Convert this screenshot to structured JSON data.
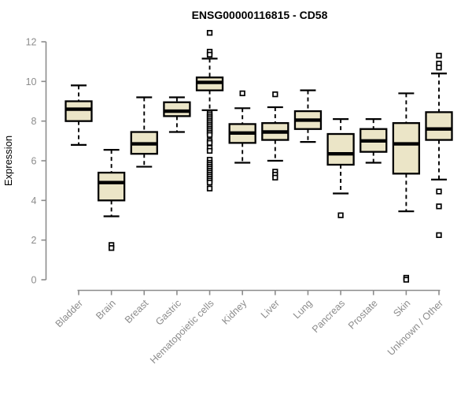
{
  "chart_data": {
    "type": "boxplot",
    "title": "ENSG00000116815 - CD58",
    "xlabel": "",
    "ylabel": "Expression",
    "ylim": [
      0,
      12
    ],
    "yticks": [
      0,
      2,
      4,
      6,
      8,
      10,
      12
    ],
    "grid": false,
    "legend": "none",
    "categories": [
      "Bladder",
      "Brain",
      "Breast",
      "Gastric",
      "Hematopoietic cells",
      "Kidney",
      "Liver",
      "Lung",
      "Pancreas",
      "Prostate",
      "Skin",
      "Unknown / Other"
    ],
    "series": [
      {
        "category": "Bladder",
        "whisker_low": 6.8,
        "q1": 8.0,
        "median": 8.6,
        "q3": 9.0,
        "whisker_high": 9.8,
        "outliers": []
      },
      {
        "category": "Brain",
        "whisker_low": 3.2,
        "q1": 4.0,
        "median": 4.9,
        "q3": 5.4,
        "whisker_high": 6.55,
        "outliers": [
          1.75,
          1.6
        ]
      },
      {
        "category": "Breast",
        "whisker_low": 5.7,
        "q1": 6.35,
        "median": 6.85,
        "q3": 7.45,
        "whisker_high": 9.2,
        "outliers": []
      },
      {
        "category": "Gastric",
        "whisker_low": 7.45,
        "q1": 8.25,
        "median": 8.5,
        "q3": 8.95,
        "whisker_high": 9.2,
        "outliers": []
      },
      {
        "category": "Hematopoietic cells",
        "whisker_low": 8.55,
        "q1": 9.55,
        "median": 9.95,
        "q3": 10.2,
        "whisker_high": 11.15,
        "outliers": [
          12.45,
          11.5,
          11.35,
          8.4,
          8.3,
          8.2,
          8.1,
          8.0,
          7.9,
          7.8,
          7.7,
          7.6,
          7.5,
          7.4,
          7.3,
          7.0,
          6.9,
          6.65,
          6.5,
          6.05,
          5.9,
          5.8,
          5.7,
          5.6,
          5.5,
          5.4,
          5.3,
          5.2,
          5.1,
          5.0,
          4.9,
          4.6
        ]
      },
      {
        "category": "Kidney",
        "whisker_low": 5.9,
        "q1": 6.9,
        "median": 7.4,
        "q3": 7.85,
        "whisker_high": 8.65,
        "outliers": [
          9.4
        ]
      },
      {
        "category": "Liver",
        "whisker_low": 6.0,
        "q1": 7.05,
        "median": 7.45,
        "q3": 7.9,
        "whisker_high": 8.7,
        "outliers": [
          9.35,
          5.45,
          5.3,
          5.15
        ]
      },
      {
        "category": "Lung",
        "whisker_low": 6.95,
        "q1": 7.6,
        "median": 8.05,
        "q3": 8.5,
        "whisker_high": 9.55,
        "outliers": []
      },
      {
        "category": "Pancreas",
        "whisker_low": 4.35,
        "q1": 5.8,
        "median": 6.35,
        "q3": 7.35,
        "whisker_high": 8.1,
        "outliers": [
          3.25
        ]
      },
      {
        "category": "Prostate",
        "whisker_low": 5.9,
        "q1": 6.45,
        "median": 7.0,
        "q3": 7.6,
        "whisker_high": 8.1,
        "outliers": []
      },
      {
        "category": "Skin",
        "whisker_low": 3.45,
        "q1": 5.35,
        "median": 6.85,
        "q3": 7.9,
        "whisker_high": 9.4,
        "outliers": [
          0.1,
          0.0
        ]
      },
      {
        "category": "Unknown / Other",
        "whisker_low": 5.05,
        "q1": 7.05,
        "median": 7.6,
        "q3": 8.45,
        "whisker_high": 10.4,
        "outliers": [
          11.3,
          10.9,
          10.7,
          4.45,
          3.7,
          2.25
        ]
      }
    ],
    "colors": {
      "box_fill": "#EBE5C7",
      "box_border": "#000000",
      "median": "#000000",
      "outlier": "#000000",
      "axis": "#8C8C8C",
      "axis_text": "#8C8C8C",
      "title": "#000000",
      "background": "#FFFFFF"
    },
    "outlier_shape": "open-square"
  }
}
